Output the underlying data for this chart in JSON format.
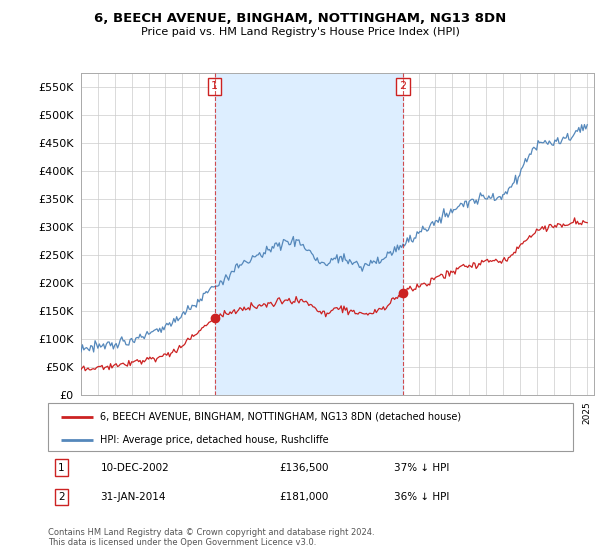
{
  "title": "6, BEECH AVENUE, BINGHAM, NOTTINGHAM, NG13 8DN",
  "subtitle": "Price paid vs. HM Land Registry's House Price Index (HPI)",
  "ylim": [
    0,
    575000
  ],
  "yticks": [
    0,
    50000,
    100000,
    150000,
    200000,
    250000,
    300000,
    350000,
    400000,
    450000,
    500000,
    550000
  ],
  "ytick_labels": [
    "£0",
    "£50K",
    "£100K",
    "£150K",
    "£200K",
    "£250K",
    "£300K",
    "£350K",
    "£400K",
    "£450K",
    "£500K",
    "£550K"
  ],
  "hpi_color": "#5588bb",
  "hpi_fill_color": "#ddeeff",
  "price_color": "#cc2222",
  "sale1_date": 2002.92,
  "sale1_price": 136500,
  "sale1_label": "1",
  "sale2_date": 2014.08,
  "sale2_price": 181000,
  "sale2_label": "2",
  "legend_line1": "6, BEECH AVENUE, BINGHAM, NOTTINGHAM, NG13 8DN (detached house)",
  "legend_line2": "HPI: Average price, detached house, Rushcliffe",
  "note1_label": "1",
  "note1_date": "10-DEC-2002",
  "note1_price": "£136,500",
  "note1_pct": "37% ↓ HPI",
  "note2_label": "2",
  "note2_date": "31-JAN-2014",
  "note2_price": "£181,000",
  "note2_pct": "36% ↓ HPI",
  "footer": "Contains HM Land Registry data © Crown copyright and database right 2024.\nThis data is licensed under the Open Government Licence v3.0.",
  "background_color": "#ffffff",
  "grid_color": "#cccccc"
}
